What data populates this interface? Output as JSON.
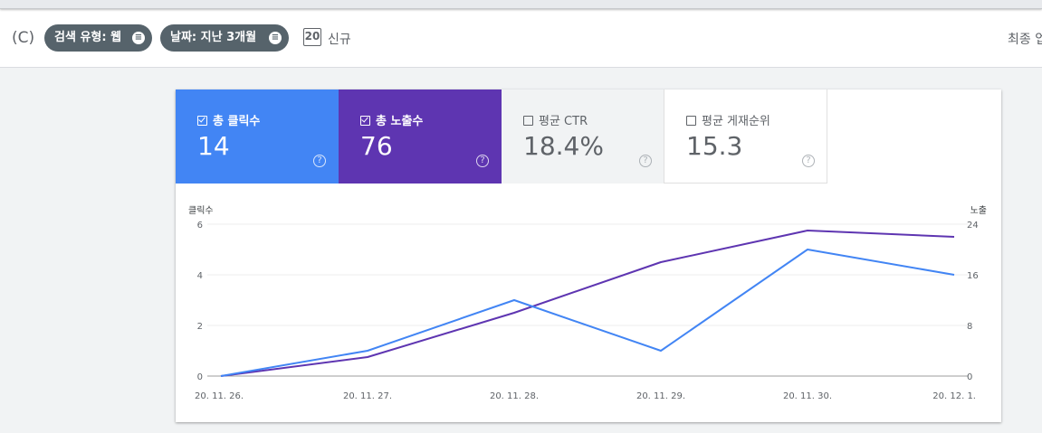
{
  "header": {
    "paren_label": "(C)",
    "filters": [
      {
        "label": "검색 유형: 웹"
      },
      {
        "label": "날짜: 지난 3개월"
      }
    ],
    "new_icon_text": "20",
    "new_label": "신규",
    "recent_label": "최종 업"
  },
  "metrics": [
    {
      "label": "총 클릭수",
      "value": "14",
      "checked": true,
      "color": "#4285f4"
    },
    {
      "label": "총 노출수",
      "value": "76",
      "checked": true,
      "color": "#5e35b1"
    },
    {
      "label": "평균 CTR",
      "value": "18.4%",
      "checked": false,
      "color": "#f1f3f4"
    },
    {
      "label": "평균 게재순위",
      "value": "15.3",
      "checked": false,
      "color": "#ffffff"
    }
  ],
  "help_glyph": "?",
  "chart_data": {
    "type": "line",
    "x": [
      "20. 11. 26.",
      "20. 11. 27.",
      "20. 11. 28.",
      "20. 11. 29.",
      "20. 11. 30.",
      "20. 12. 1."
    ],
    "left_axis": {
      "label": "클릭수",
      "ticks": [
        "0",
        "2",
        "4",
        "6"
      ],
      "ylim": [
        0,
        6
      ]
    },
    "right_axis": {
      "label": "노출",
      "ticks": [
        "0",
        "8",
        "16",
        "24"
      ],
      "ylim": [
        0,
        24
      ]
    },
    "series": [
      {
        "axis": "left",
        "color": "#4285f4",
        "values": [
          0,
          1,
          3,
          1,
          5,
          4
        ]
      },
      {
        "axis": "right",
        "color": "#5e35b1",
        "values": [
          0,
          3,
          10,
          18,
          23,
          22
        ]
      }
    ],
    "grid": true
  }
}
